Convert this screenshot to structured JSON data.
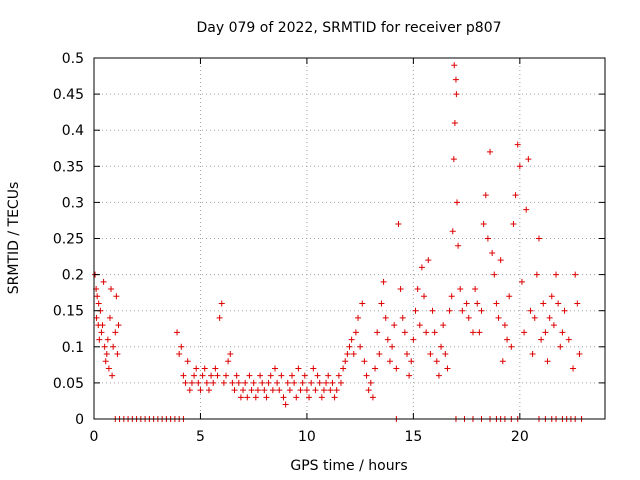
{
  "chart_data": {
    "type": "scatter",
    "title": "Day 079 of 2022, SRMTID for receiver p807",
    "xlabel": "GPS time / hours",
    "ylabel": "SRMTID / TECUs",
    "xlim": [
      0,
      24
    ],
    "ylim": [
      0,
      0.5
    ],
    "xticks": [
      0,
      5,
      10,
      15,
      20
    ],
    "xtick_labels": [
      "0",
      "5",
      "10",
      "15",
      "20"
    ],
    "yticks": [
      0,
      0.05,
      0.1,
      0.15,
      0.2,
      0.25,
      0.3,
      0.35,
      0.4,
      0.45,
      0.5
    ],
    "ytick_labels": [
      "0",
      "0.05",
      "0.1",
      "0.15",
      "0.2",
      "0.25",
      "0.3",
      "0.35",
      "0.4",
      "0.45",
      "0.5"
    ],
    "grid": true,
    "marker": "+",
    "marker_color": "#dd0000",
    "series": [
      {
        "name": "SRMTID",
        "points": [
          [
            0.05,
            0.2
          ],
          [
            0.1,
            0.18
          ],
          [
            0.12,
            0.14
          ],
          [
            0.15,
            0.17
          ],
          [
            0.2,
            0.13
          ],
          [
            0.22,
            0.16
          ],
          [
            0.25,
            0.11
          ],
          [
            0.3,
            0.15
          ],
          [
            0.35,
            0.12
          ],
          [
            0.4,
            0.13
          ],
          [
            0.45,
            0.19
          ],
          [
            0.5,
            0.1
          ],
          [
            0.55,
            0.08
          ],
          [
            0.6,
            0.09
          ],
          [
            0.65,
            0.11
          ],
          [
            0.7,
            0.07
          ],
          [
            0.75,
            0.14
          ],
          [
            0.8,
            0.18
          ],
          [
            0.85,
            0.06
          ],
          [
            0.9,
            0.1
          ],
          [
            1.0,
            0.12
          ],
          [
            1.05,
            0.17
          ],
          [
            1.1,
            0.09
          ],
          [
            1.15,
            0.13
          ],
          [
            1.0,
            0
          ],
          [
            1.2,
            0
          ],
          [
            1.4,
            0
          ],
          [
            1.6,
            0
          ],
          [
            1.8,
            0
          ],
          [
            2.0,
            0
          ],
          [
            2.2,
            0
          ],
          [
            2.4,
            0
          ],
          [
            2.6,
            0
          ],
          [
            2.8,
            0
          ],
          [
            3.0,
            0
          ],
          [
            3.2,
            0
          ],
          [
            3.4,
            0
          ],
          [
            3.6,
            0
          ],
          [
            3.8,
            0
          ],
          [
            4.0,
            0
          ],
          [
            4.2,
            0
          ],
          [
            3.9,
            0.12
          ],
          [
            4.0,
            0.09
          ],
          [
            4.1,
            0.1
          ],
          [
            4.2,
            0.06
          ],
          [
            4.3,
            0.05
          ],
          [
            4.4,
            0.08
          ],
          [
            4.5,
            0.04
          ],
          [
            4.6,
            0.05
          ],
          [
            4.7,
            0.06
          ],
          [
            4.8,
            0.07
          ],
          [
            4.9,
            0.05
          ],
          [
            5.0,
            0.04
          ],
          [
            5.1,
            0.06
          ],
          [
            5.2,
            0.07
          ],
          [
            5.3,
            0.05
          ],
          [
            5.4,
            0.04
          ],
          [
            5.5,
            0.06
          ],
          [
            5.6,
            0.05
          ],
          [
            5.7,
            0.07
          ],
          [
            5.8,
            0.06
          ],
          [
            5.9,
            0.14
          ],
          [
            6.0,
            0.16
          ],
          [
            6.1,
            0.05
          ],
          [
            6.2,
            0.06
          ],
          [
            6.3,
            0.08
          ],
          [
            6.4,
            0.09
          ],
          [
            6.5,
            0.05
          ],
          [
            6.6,
            0.04
          ],
          [
            6.7,
            0.06
          ],
          [
            6.8,
            0.05
          ],
          [
            6.9,
            0.03
          ],
          [
            7.0,
            0.04
          ],
          [
            7.1,
            0.05
          ],
          [
            7.2,
            0.03
          ],
          [
            7.3,
            0.06
          ],
          [
            7.4,
            0.04
          ],
          [
            7.5,
            0.05
          ],
          [
            7.6,
            0.03
          ],
          [
            7.7,
            0.04
          ],
          [
            7.8,
            0.06
          ],
          [
            7.9,
            0.05
          ],
          [
            8.0,
            0.04
          ],
          [
            8.1,
            0.03
          ],
          [
            8.2,
            0.05
          ],
          [
            8.3,
            0.06
          ],
          [
            8.4,
            0.04
          ],
          [
            8.5,
            0.07
          ],
          [
            8.6,
            0.05
          ],
          [
            8.7,
            0.04
          ],
          [
            8.8,
            0.06
          ],
          [
            8.9,
            0.03
          ],
          [
            9.0,
            0.02
          ],
          [
            9.1,
            0.05
          ],
          [
            9.2,
            0.04
          ],
          [
            9.3,
            0.06
          ],
          [
            9.4,
            0.05
          ],
          [
            9.5,
            0.03
          ],
          [
            9.6,
            0.07
          ],
          [
            9.7,
            0.04
          ],
          [
            9.8,
            0.05
          ],
          [
            9.9,
            0.06
          ],
          [
            10.0,
            0.04
          ],
          [
            10.1,
            0.03
          ],
          [
            10.2,
            0.05
          ],
          [
            10.3,
            0.07
          ],
          [
            10.4,
            0.04
          ],
          [
            10.5,
            0.06
          ],
          [
            10.6,
            0.05
          ],
          [
            10.7,
            0.03
          ],
          [
            10.8,
            0.04
          ],
          [
            10.9,
            0.05
          ],
          [
            11.0,
            0.06
          ],
          [
            11.1,
            0.04
          ],
          [
            11.2,
            0.05
          ],
          [
            11.3,
            0.03
          ],
          [
            11.4,
            0.04
          ],
          [
            11.5,
            0.06
          ],
          [
            11.6,
            0.05
          ],
          [
            11.7,
            0.07
          ],
          [
            11.8,
            0.08
          ],
          [
            11.9,
            0.09
          ],
          [
            12.0,
            0.1
          ],
          [
            12.1,
            0.11
          ],
          [
            12.2,
            0.09
          ],
          [
            12.3,
            0.12
          ],
          [
            12.4,
            0.14
          ],
          [
            12.5,
            0.1
          ],
          [
            12.6,
            0.16
          ],
          [
            12.7,
            0.08
          ],
          [
            12.8,
            0.06
          ],
          [
            12.9,
            0.04
          ],
          [
            13.0,
            0.05
          ],
          [
            13.1,
            0.03
          ],
          [
            13.2,
            0.07
          ],
          [
            13.3,
            0.12
          ],
          [
            13.4,
            0.09
          ],
          [
            13.5,
            0.16
          ],
          [
            13.6,
            0.19
          ],
          [
            13.7,
            0.14
          ],
          [
            13.8,
            0.11
          ],
          [
            13.9,
            0.08
          ],
          [
            14.0,
            0.1
          ],
          [
            14.1,
            0.13
          ],
          [
            14.2,
            0.07
          ],
          [
            14.3,
            0.27
          ],
          [
            14.4,
            0.18
          ],
          [
            14.5,
            0.14
          ],
          [
            14.6,
            0.12
          ],
          [
            14.7,
            0.09
          ],
          [
            14.8,
            0.06
          ],
          [
            14.9,
            0.08
          ],
          [
            15.0,
            0.11
          ],
          [
            15.1,
            0.15
          ],
          [
            15.2,
            0.18
          ],
          [
            15.3,
            0.13
          ],
          [
            15.4,
            0.21
          ],
          [
            15.5,
            0.17
          ],
          [
            15.6,
            0.12
          ],
          [
            15.7,
            0.22
          ],
          [
            15.8,
            0.09
          ],
          [
            15.9,
            0.15
          ],
          [
            16.0,
            0.12
          ],
          [
            16.1,
            0.08
          ],
          [
            16.2,
            0.06
          ],
          [
            16.3,
            0.1
          ],
          [
            16.4,
            0.13
          ],
          [
            16.5,
            0.09
          ],
          [
            16.6,
            0.07
          ],
          [
            16.7,
            0.15
          ],
          [
            16.8,
            0.17
          ],
          [
            16.85,
            0.26
          ],
          [
            16.9,
            0.36
          ],
          [
            16.95,
            0.41
          ],
          [
            17.0,
            0.47
          ],
          [
            16.92,
            0.49
          ],
          [
            17.02,
            0.45
          ],
          [
            17.05,
            0.3
          ],
          [
            17.1,
            0.24
          ],
          [
            17.2,
            0.18
          ],
          [
            17.3,
            0.15
          ],
          [
            17.5,
            0.16
          ],
          [
            17.6,
            0.14
          ],
          [
            17.8,
            0.12
          ],
          [
            17.9,
            0.18
          ],
          [
            18.0,
            0.16
          ],
          [
            18.1,
            0.12
          ],
          [
            18.2,
            0.15
          ],
          [
            18.3,
            0.27
          ],
          [
            18.4,
            0.31
          ],
          [
            18.5,
            0.25
          ],
          [
            18.6,
            0.37
          ],
          [
            18.7,
            0.23
          ],
          [
            18.8,
            0.2
          ],
          [
            18.9,
            0.16
          ],
          [
            19.0,
            0.14
          ],
          [
            19.1,
            0.22
          ],
          [
            19.2,
            0.08
          ],
          [
            19.3,
            0.13
          ],
          [
            19.4,
            0.11
          ],
          [
            19.5,
            0.17
          ],
          [
            19.6,
            0.1
          ],
          [
            19.7,
            0.27
          ],
          [
            19.8,
            0.31
          ],
          [
            19.9,
            0.38
          ],
          [
            20.0,
            0.35
          ],
          [
            20.1,
            0.19
          ],
          [
            20.2,
            0.12
          ],
          [
            20.3,
            0.29
          ],
          [
            20.4,
            0.36
          ],
          [
            20.5,
            0.15
          ],
          [
            20.6,
            0.09
          ],
          [
            20.7,
            0.14
          ],
          [
            20.8,
            0.2
          ],
          [
            20.9,
            0.25
          ],
          [
            21.0,
            0.11
          ],
          [
            21.1,
            0.16
          ],
          [
            21.2,
            0.12
          ],
          [
            21.3,
            0.08
          ],
          [
            21.4,
            0.14
          ],
          [
            21.5,
            0.17
          ],
          [
            21.6,
            0.13
          ],
          [
            21.7,
            0.2
          ],
          [
            21.8,
            0.16
          ],
          [
            21.9,
            0.1
          ],
          [
            22.0,
            0.12
          ],
          [
            22.1,
            0.15
          ],
          [
            22.3,
            0.11
          ],
          [
            22.5,
            0.07
          ],
          [
            22.6,
            0.2
          ],
          [
            22.7,
            0.16
          ],
          [
            22.8,
            0.09
          ],
          [
            14.2,
            0
          ],
          [
            17.0,
            0
          ],
          [
            17.4,
            0
          ],
          [
            17.8,
            0
          ],
          [
            18.2,
            0
          ],
          [
            18.6,
            0
          ],
          [
            18.9,
            0
          ],
          [
            19.1,
            0
          ],
          [
            19.3,
            0
          ],
          [
            19.6,
            0
          ],
          [
            19.9,
            0
          ],
          [
            20.9,
            0
          ],
          [
            21.2,
            0
          ],
          [
            21.5,
            0
          ],
          [
            21.7,
            0
          ],
          [
            22.0,
            0
          ],
          [
            22.2,
            0
          ],
          [
            22.4,
            0
          ],
          [
            22.6,
            0
          ],
          [
            22.9,
            0
          ]
        ]
      }
    ]
  }
}
